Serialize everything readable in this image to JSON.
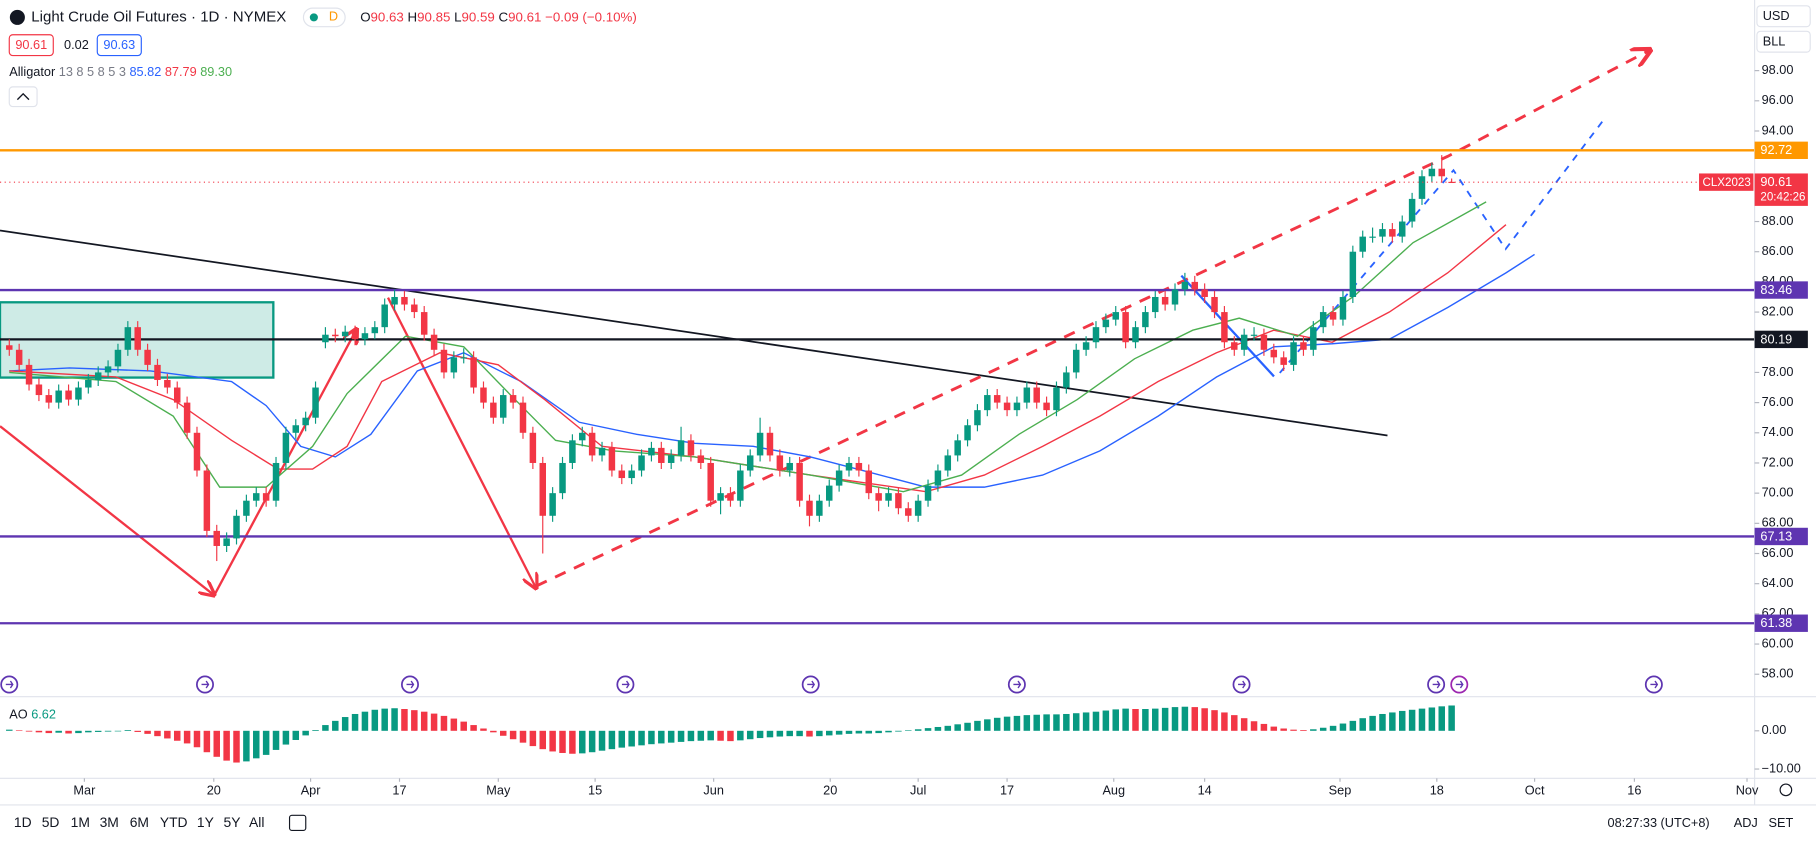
{
  "header": {
    "title": "Light Crude Oil Futures · 1D · NYMEX",
    "badge": "D",
    "ohlc_labels": [
      "O",
      "H",
      "L",
      "C"
    ],
    "change": "−0.09 (−0.10%)",
    "bid": "90.61",
    "spread": "0.02",
    "ask": "90.63",
    "currency": "USD",
    "unit": "BLL"
  },
  "chart_data": {
    "type": "candlestick",
    "up_color": "#089981",
    "down_color": "#f23645",
    "candles": [
      [
        79.8,
        80.2,
        79.1,
        79.5
      ],
      [
        79.5,
        79.9,
        78.1,
        78.5
      ],
      [
        78.5,
        78.9,
        76.8,
        77.2
      ],
      [
        77.2,
        77.6,
        76.1,
        76.5
      ],
      [
        76.5,
        76.9,
        75.6,
        76
      ],
      [
        76,
        77.2,
        75.6,
        76.8
      ],
      [
        76.8,
        77.2,
        75.8,
        76.2
      ],
      [
        76.2,
        77.4,
        75.8,
        77
      ],
      [
        77,
        77.9,
        76.6,
        77.5
      ],
      [
        77.5,
        78.4,
        77.1,
        78
      ],
      [
        78,
        78.8,
        77.6,
        78.4
      ],
      [
        78.4,
        79.9,
        78,
        79.5
      ],
      [
        79.5,
        81.4,
        79.1,
        81
      ],
      [
        81,
        81.4,
        79.1,
        79.5
      ],
      [
        79.5,
        79.9,
        78.1,
        78.5
      ],
      [
        78.5,
        78.9,
        77.1,
        77.5
      ],
      [
        77.5,
        77.9,
        76.6,
        77
      ],
      [
        77,
        77.4,
        75.6,
        76
      ],
      [
        76,
        76.4,
        73.6,
        74
      ],
      [
        74,
        74.4,
        71.1,
        71.5
      ],
      [
        71.5,
        71.9,
        67.1,
        67.5
      ],
      [
        67.5,
        67.9,
        65.5,
        66.5
      ],
      [
        66.5,
        67.4,
        66.1,
        67
      ],
      [
        67,
        68.9,
        66.6,
        68.5
      ],
      [
        68.5,
        69.9,
        68.1,
        69.5
      ],
      [
        69.5,
        70.4,
        69.1,
        70
      ],
      [
        70,
        70.4,
        69.1,
        69.5
      ],
      [
        69.5,
        72.4,
        69.1,
        72
      ],
      [
        72,
        74.4,
        71.6,
        74
      ],
      [
        74,
        74.9,
        73.6,
        74.5
      ],
      [
        74.5,
        75.4,
        74.1,
        75
      ],
      [
        75,
        77.4,
        74.6,
        77
      ],
      [
        80,
        81,
        79.6,
        80.5
      ],
      [
        80.5,
        80.9,
        80,
        80.4
      ],
      [
        80.4,
        81.1,
        80,
        80.7
      ],
      [
        80.7,
        81.1,
        79.8,
        80.2
      ],
      [
        80.2,
        81,
        79.8,
        80.6
      ],
      [
        80.6,
        81.4,
        80.2,
        81
      ],
      [
        81,
        82.9,
        80.6,
        82.5
      ],
      [
        82.5,
        83.5,
        82.1,
        83
      ],
      [
        83,
        83.4,
        82.1,
        82.5
      ],
      [
        82.5,
        82.9,
        81.6,
        82
      ],
      [
        82,
        82.4,
        80.1,
        80.5
      ],
      [
        80.5,
        80.9,
        79.1,
        79.5
      ],
      [
        79.5,
        79.9,
        77.6,
        78
      ],
      [
        78,
        79.4,
        77.6,
        79
      ],
      [
        79,
        79.6,
        78.6,
        79
      ],
      [
        79,
        79.4,
        76.6,
        77
      ],
      [
        77,
        77.4,
        75.6,
        76
      ],
      [
        76,
        76.4,
        74.6,
        75
      ],
      [
        75,
        76.9,
        74.6,
        76.5
      ],
      [
        76.5,
        76.9,
        75.6,
        76
      ],
      [
        76,
        76.4,
        73.6,
        74
      ],
      [
        74,
        74.4,
        71.6,
        72
      ],
      [
        72,
        72.4,
        66,
        68.5
      ],
      [
        68.5,
        70.4,
        68.1,
        70
      ],
      [
        70,
        72.4,
        69.6,
        72
      ],
      [
        72,
        73.9,
        71.6,
        73.5
      ],
      [
        73.5,
        74.4,
        73.1,
        74
      ],
      [
        74,
        74.4,
        72.1,
        72.5
      ],
      [
        72.5,
        73.4,
        72.1,
        73
      ],
      [
        73,
        73.4,
        71.1,
        71.5
      ],
      [
        71.5,
        71.9,
        70.6,
        71
      ],
      [
        71,
        71.9,
        70.6,
        71.5
      ],
      [
        71.5,
        72.9,
        71.1,
        72.5
      ],
      [
        72.5,
        73.4,
        72.1,
        73
      ],
      [
        73,
        73.4,
        71.6,
        72
      ],
      [
        72,
        72.9,
        71.6,
        72.5
      ],
      [
        72.5,
        74.4,
        72.1,
        73.5
      ],
      [
        73.5,
        73.9,
        72.1,
        72.5
      ],
      [
        72.5,
        72.9,
        71.6,
        72
      ],
      [
        72,
        72.4,
        69.1,
        69.5
      ],
      [
        69.5,
        70.4,
        68.6,
        70
      ],
      [
        70,
        70.4,
        69.1,
        69.5
      ],
      [
        69.5,
        71.9,
        69.1,
        71.5
      ],
      [
        71.5,
        72.9,
        71.1,
        72.5
      ],
      [
        72.5,
        75,
        72.1,
        74
      ],
      [
        74,
        74.4,
        72.1,
        72.5
      ],
      [
        72.5,
        72.9,
        71.1,
        71.5
      ],
      [
        71.5,
        72.4,
        71.1,
        72
      ],
      [
        72,
        72.4,
        69.1,
        69.5
      ],
      [
        69.5,
        69.9,
        67.8,
        68.5
      ],
      [
        68.5,
        69.9,
        68.1,
        69.5
      ],
      [
        69.5,
        70.9,
        69.1,
        70.5
      ],
      [
        70.5,
        71.9,
        70.1,
        71.5
      ],
      [
        71.5,
        72.4,
        71.1,
        72
      ],
      [
        72,
        72.4,
        71.1,
        71.5
      ],
      [
        71.5,
        71.9,
        69.6,
        70
      ],
      [
        70,
        70.4,
        68.8,
        69.5
      ],
      [
        69.5,
        70.4,
        69.1,
        70
      ],
      [
        70,
        70.4,
        68.6,
        69
      ],
      [
        69,
        69.4,
        68.1,
        68.5
      ],
      [
        68.5,
        69.9,
        68.1,
        69.5
      ],
      [
        69.5,
        70.9,
        69.1,
        70.5
      ],
      [
        70.5,
        71.9,
        70.1,
        71.5
      ],
      [
        71.5,
        72.9,
        71.1,
        72.5
      ],
      [
        72.5,
        73.9,
        72.1,
        73.5
      ],
      [
        73.5,
        74.9,
        73.1,
        74.5
      ],
      [
        74.5,
        75.9,
        74.1,
        75.5
      ],
      [
        75.5,
        76.9,
        75.1,
        76.5
      ],
      [
        76.5,
        76.9,
        75.6,
        76
      ],
      [
        76,
        76.4,
        75.1,
        75.5
      ],
      [
        75.5,
        76.4,
        75.1,
        76
      ],
      [
        76,
        77.4,
        75.6,
        77
      ],
      [
        77,
        77.4,
        75.6,
        76
      ],
      [
        76,
        76.4,
        75.1,
        75.5
      ],
      [
        75.5,
        77.4,
        75.1,
        77
      ],
      [
        77,
        78.4,
        76.6,
        78
      ],
      [
        78,
        79.9,
        77.6,
        79.5
      ],
      [
        79.5,
        80.4,
        79.1,
        80
      ],
      [
        80,
        81.4,
        79.6,
        81
      ],
      [
        81,
        81.9,
        80.6,
        81.5
      ],
      [
        81.5,
        82.4,
        81.1,
        82
      ],
      [
        82,
        82.4,
        79.6,
        80
      ],
      [
        80,
        81.4,
        79.6,
        81
      ],
      [
        81,
        82.4,
        80.6,
        82
      ],
      [
        82,
        83.4,
        81.6,
        83
      ],
      [
        83,
        83.4,
        82.1,
        82.5
      ],
      [
        82.5,
        83.9,
        82.1,
        83.5
      ],
      [
        83.5,
        84.6,
        83.1,
        84
      ],
      [
        84,
        84.4,
        83.1,
        83.5
      ],
      [
        83.5,
        83.9,
        82.6,
        83
      ],
      [
        83,
        83.4,
        81.6,
        82
      ],
      [
        82,
        82.4,
        79.6,
        80
      ],
      [
        80,
        80.4,
        79.1,
        79.5
      ],
      [
        79.5,
        80.9,
        79.1,
        80.5
      ],
      [
        80.5,
        81,
        80.1,
        80.5
      ],
      [
        80.5,
        80.9,
        79.1,
        79.5
      ],
      [
        79.5,
        79.9,
        78.6,
        79
      ],
      [
        79,
        79.4,
        78.1,
        78.5
      ],
      [
        78.5,
        80.4,
        78.1,
        80
      ],
      [
        80,
        80.4,
        79.1,
        79.5
      ],
      [
        79.5,
        81.4,
        79.1,
        81
      ],
      [
        81,
        82.4,
        80.6,
        82
      ],
      [
        82,
        82.4,
        81.1,
        81.5
      ],
      [
        81.5,
        83.4,
        81.1,
        83
      ],
      [
        83,
        86.4,
        82.6,
        86
      ],
      [
        86,
        87.4,
        85.6,
        87
      ],
      [
        87,
        87.6,
        86.6,
        87
      ],
      [
        87,
        87.9,
        86.6,
        87.5
      ],
      [
        87.5,
        87.9,
        86.6,
        87
      ],
      [
        87,
        88.4,
        86.6,
        88
      ],
      [
        88,
        89.9,
        87.6,
        89.5
      ],
      [
        89.5,
        91.4,
        89.1,
        91
      ],
      [
        91,
        91.9,
        90.6,
        91.5
      ],
      [
        91.5,
        92.4,
        90.6,
        91
      ],
      [
        90.63,
        90.85,
        90.59,
        90.61
      ]
    ],
    "xlim": [
      -0.94,
      176.67
    ],
    "xticks": [
      {
        "value": 7.6,
        "label": "Mar"
      },
      {
        "value": 20.7,
        "label": "20"
      },
      {
        "value": 30.5,
        "label": "Apr"
      },
      {
        "value": 39.5,
        "label": "17"
      },
      {
        "value": 49.5,
        "label": "May"
      },
      {
        "value": 59.3,
        "label": "15"
      },
      {
        "value": 71.3,
        "label": "Jun"
      },
      {
        "value": 83.1,
        "label": "20"
      },
      {
        "value": 92,
        "label": "Jul"
      },
      {
        "value": 101,
        "label": "17"
      },
      {
        "value": 111.8,
        "label": "Aug"
      },
      {
        "value": 121,
        "label": "14"
      },
      {
        "value": 134.7,
        "label": "Sep"
      },
      {
        "value": 144.5,
        "label": "18"
      },
      {
        "value": 154.4,
        "label": "Oct"
      },
      {
        "value": 164.5,
        "label": "16"
      },
      {
        "value": 175.9,
        "label": "Nov"
      }
    ],
    "ylim": [
      56.63,
      102.68
    ],
    "yticks": [
      {
        "value": 98,
        "label": "98.00"
      },
      {
        "value": 96,
        "label": "96.00"
      },
      {
        "value": 94,
        "label": "94.00"
      },
      {
        "value": 88,
        "label": "88.00"
      },
      {
        "value": 86,
        "label": "86.00"
      },
      {
        "value": 84,
        "label": "84.00"
      },
      {
        "value": 82,
        "label": "82.00"
      },
      {
        "value": 78,
        "label": "78.00"
      },
      {
        "value": 76,
        "label": "76.00"
      },
      {
        "value": 74,
        "label": "74.00"
      },
      {
        "value": 72,
        "label": "72.00"
      },
      {
        "value": 70,
        "label": "70.00"
      },
      {
        "value": 68,
        "label": "68.00"
      },
      {
        "value": 66,
        "label": "66.00"
      },
      {
        "value": 64,
        "label": "64.00"
      },
      {
        "value": 62,
        "label": "62.00"
      },
      {
        "value": 60,
        "label": "60.00"
      },
      {
        "value": 58,
        "label": "58.00"
      }
    ],
    "last_price": {
      "symbol": "CLX2023",
      "countdown": "20:42:26",
      "color": "#f23645"
    },
    "levels": [
      {
        "value": 92.72,
        "color": "#ff9800"
      },
      {
        "value": 83.46,
        "color": "#5e35b1"
      },
      {
        "value": 80.19,
        "color": "#131722"
      },
      {
        "value": 67.13,
        "color": "#5e35b1"
      },
      {
        "value": 61.38,
        "color": "#5e35b1"
      }
    ],
    "alligator": {
      "name": "Alligator",
      "params": "13 8 5 8 5 3",
      "legend_labels": [
        "85.82",
        "87.79",
        "89.30"
      ],
      "lines": [
        {
          "color": "#2962ff",
          "x": [
            0,
            6.1,
            14.3,
            22.5,
            26,
            29.5,
            33,
            36.6,
            41.3,
            46,
            51.8,
            57.7,
            63.5,
            69.4,
            75.3,
            81.1,
            87,
            92.8,
            98.7,
            104.6,
            110.4,
            116.3,
            122.2,
            128,
            133.9,
            139.7,
            145.6,
            151.5,
            154.4
          ],
          "values": [
            78.1,
            78.3,
            78.1,
            77.4,
            75.8,
            73.1,
            72.4,
            73.9,
            78.1,
            79.3,
            77.4,
            74.7,
            73.9,
            73.3,
            73.1,
            72.4,
            71.4,
            70.4,
            70.4,
            71.2,
            72.8,
            75.1,
            77.7,
            79.7,
            79.9,
            80.2,
            82.3,
            84.6,
            85.82
          ]
        },
        {
          "color": "#f23645",
          "x": [
            0,
            10.8,
            16.6,
            22.5,
            27.2,
            30.7,
            34.2,
            37.7,
            43.6,
            49.5,
            54.2,
            60,
            69.4,
            81.1,
            92.8,
            98.7,
            104.6,
            110.4,
            116.3,
            122.2,
            128,
            133.9,
            139.7,
            145.6,
            151.5
          ],
          "values": [
            78.1,
            77.7,
            76.2,
            73.5,
            71.6,
            71.6,
            73.1,
            77.4,
            79.3,
            78.5,
            76.2,
            73.1,
            72.4,
            71.2,
            70.1,
            71.2,
            73.1,
            75.1,
            77.4,
            79.3,
            80.8,
            80,
            82,
            84.6,
            87.79
          ]
        },
        {
          "color": "#4caf50",
          "x": [
            0,
            10.8,
            16.6,
            21.3,
            26,
            30.7,
            34.2,
            40.1,
            46,
            50.6,
            55.3,
            61.2,
            69.4,
            81.1,
            90.5,
            96.4,
            102.2,
            108.1,
            113.9,
            119.8,
            124.5,
            130.4,
            136.2,
            142.1,
            149.5
          ],
          "values": [
            78,
            77.4,
            75.1,
            70.4,
            70.4,
            73.1,
            76.6,
            80.4,
            79.7,
            76.6,
            73.5,
            72.8,
            72.4,
            71.2,
            70.1,
            71.2,
            73.9,
            76.2,
            78.9,
            80.8,
            81.6,
            80.4,
            83.1,
            86.6,
            89.3
          ]
        }
      ]
    },
    "ao": {
      "name": "AO",
      "ylim": [
        -12.42,
        8.48
      ],
      "yticks": [
        {
          "value": 0,
          "label": "0.00"
        },
        {
          "value": -10,
          "label": "−10.00"
        }
      ],
      "values": [
        0.3,
        0.1,
        -0.2,
        -0.4,
        -0.6,
        -0.5,
        -0.7,
        -0.6,
        -0.4,
        -0.3,
        -0.2,
        -0.1,
        0.2,
        -0.3,
        -0.8,
        -1.4,
        -2,
        -2.6,
        -3.3,
        -4.3,
        -5.6,
        -6.8,
        -7.8,
        -8.3,
        -8,
        -7.2,
        -6.3,
        -5,
        -3.6,
        -2.4,
        -1.2,
        0.2,
        1.5,
        2.6,
        3.6,
        4.4,
        5,
        5.5,
        5.8,
        5.9,
        5.7,
        5.4,
        5,
        4.5,
        3.9,
        3.2,
        2.4,
        1.5,
        0.6,
        -0.4,
        -1.3,
        -2.2,
        -3.1,
        -4,
        -4.8,
        -5.4,
        -5.8,
        -6,
        -5.9,
        -5.6,
        -5.2,
        -4.8,
        -4.4,
        -4.1,
        -3.8,
        -3.5,
        -3.3,
        -3.1,
        -2.9,
        -2.7,
        -2.6,
        -2.5,
        -2.6,
        -2.7,
        -2.5,
        -2.2,
        -1.9,
        -1.7,
        -1.5,
        -1.4,
        -1.4,
        -1.5,
        -1.4,
        -1.2,
        -1,
        -0.8,
        -0.7,
        -0.7,
        -0.6,
        -0.4,
        -0.2,
        0.1,
        0.4,
        0.7,
        1,
        1.3,
        1.7,
        2.1,
        2.6,
        3,
        3.4,
        3.7,
        3.9,
        4.1,
        4.2,
        4.3,
        4.3,
        4.4,
        4.6,
        4.8,
        5,
        5.3,
        5.6,
        5.8,
        5.7,
        5.7,
        5.8,
        6,
        6.2,
        6.3,
        6.2,
        5.9,
        5.4,
        4.8,
        4.1,
        3.3,
        2.5,
        1.8,
        1.1,
        0.6,
        0.3,
        0.2,
        0.4,
        0.8,
        1.3,
        1.9,
        2.6,
        3.3,
        3.9,
        4.4,
        4.8,
        5.2,
        5.5,
        5.8,
        6.1,
        6.4,
        6.62
      ]
    }
  },
  "toolbar": {
    "ranges": [
      "1D",
      "5D",
      "1M",
      "3M",
      "6M",
      "YTD",
      "1Y",
      "5Y",
      "All"
    ],
    "time": "08:27:33 (UTC+8)",
    "adj": "ADJ",
    "set": "SET"
  }
}
